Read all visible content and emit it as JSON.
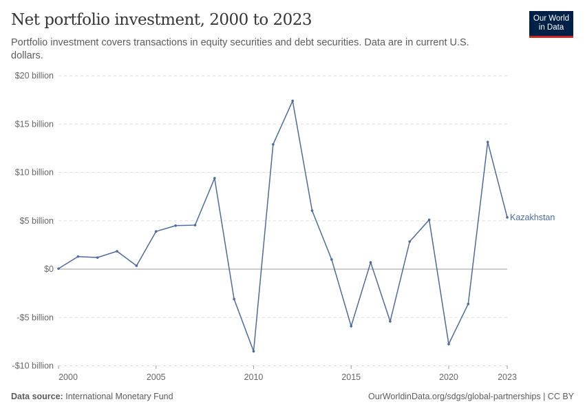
{
  "header": {
    "title": "Net portfolio investment, 2000 to 2023",
    "subtitle": "Portfolio investment covers transactions in equity securities and debt securities. Data are in current U.S. dollars.",
    "logo": "Our World in Data"
  },
  "footer": {
    "source_label": "Data source:",
    "source": "International Monetary Fund",
    "link": "OurWorldinData.org/sdgs/global-partnerships | CC BY"
  },
  "chart_data": {
    "type": "line",
    "title": "Net portfolio investment, 2000 to 2023",
    "ylim": [
      -10,
      20
    ],
    "y_ticks": [
      {
        "v": 20,
        "label": "$20 billion"
      },
      {
        "v": 15,
        "label": "$15 billion"
      },
      {
        "v": 10,
        "label": "$10 billion"
      },
      {
        "v": 5,
        "label": "$5 billion"
      },
      {
        "v": 0,
        "label": "$0"
      },
      {
        "v": -5,
        "label": "-$5 billion"
      },
      {
        "v": -10,
        "label": "-$10 billion"
      }
    ],
    "x_ticks": [
      2000,
      2005,
      2010,
      2015,
      2020,
      2023
    ],
    "grid": "horizontal dashed",
    "color": "#4c6a9c",
    "series": [
      {
        "name": "Kazakhstan",
        "x": [
          2000,
          2001,
          2002,
          2003,
          2004,
          2005,
          2006,
          2007,
          2008,
          2009,
          2010,
          2011,
          2012,
          2013,
          2014,
          2015,
          2016,
          2017,
          2018,
          2019,
          2020,
          2021,
          2022,
          2023
        ],
        "values": [
          0.05,
          1.3,
          1.2,
          1.85,
          0.35,
          3.9,
          4.5,
          4.55,
          9.4,
          -3.1,
          -8.5,
          12.9,
          17.4,
          6.05,
          1.0,
          -5.9,
          0.7,
          -5.4,
          2.85,
          5.1,
          -7.75,
          -3.6,
          13.15,
          5.35
        ]
      }
    ]
  }
}
